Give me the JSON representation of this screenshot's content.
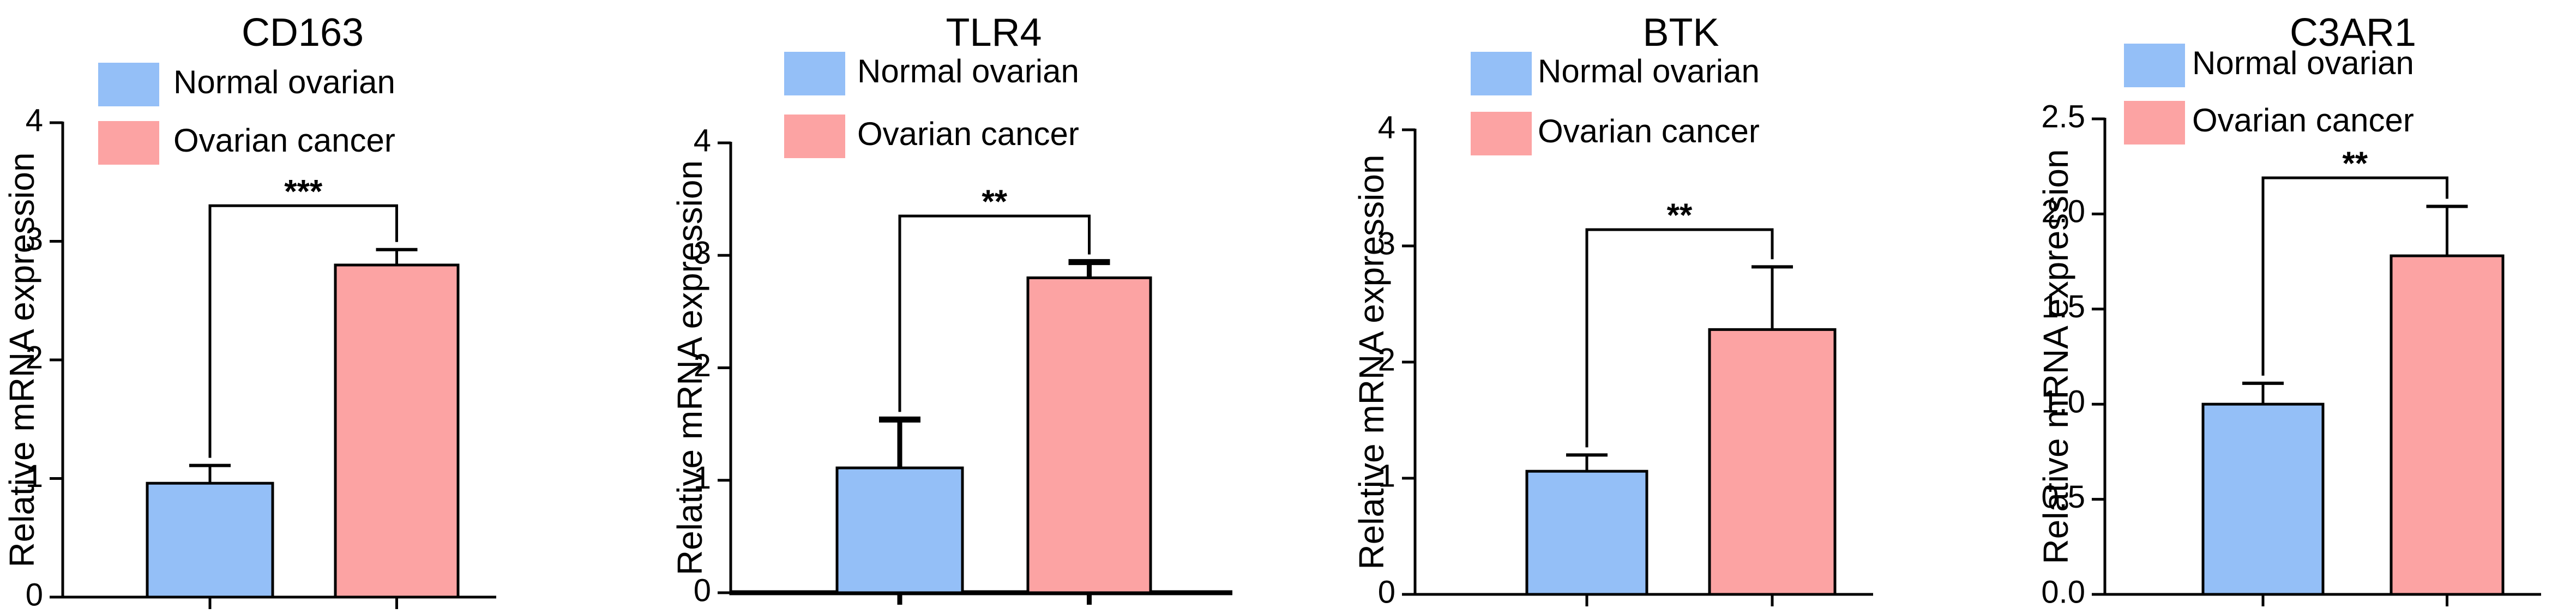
{
  "legend": {
    "normal_label": "Normal ovarian",
    "cancer_label": "Ovarian cancer"
  },
  "colors": {
    "normal": "#94BFF7",
    "cancer": "#FCA3A3",
    "axis": "#000000"
  },
  "chart_data": [
    {
      "type": "bar",
      "title": "CD163",
      "xlabel": "",
      "ylabel": "Relative mRNA expression",
      "categories": [
        "Normal ovarian",
        "Ovarian cancer"
      ],
      "values": [
        0.96,
        2.8
      ],
      "errors": [
        0.15,
        0.13
      ],
      "ylim": [
        0,
        4
      ],
      "yticks": [
        0,
        1,
        2,
        3,
        4
      ],
      "ytick_labels": [
        "0",
        "1",
        "2",
        "3",
        "4"
      ],
      "significance": "***",
      "sig_level": 3.3
    },
    {
      "type": "bar",
      "title": "TLR4",
      "xlabel": "",
      "ylabel": "Relative mRNA expression",
      "categories": [
        "Normal ovarian",
        "Ovarian cancer"
      ],
      "values": [
        1.11,
        2.8
      ],
      "errors": [
        0.43,
        0.14
      ],
      "ylim": [
        0,
        4
      ],
      "yticks": [
        0,
        1,
        2,
        3,
        4
      ],
      "ytick_labels": [
        "0",
        "1",
        "2",
        "3",
        "4"
      ],
      "significance": "**",
      "sig_level": 3.35
    },
    {
      "type": "bar",
      "title": "BTK",
      "xlabel": "",
      "ylabel": "Relative mRNA expression",
      "categories": [
        "Normal ovarian",
        "Ovarian cancer"
      ],
      "values": [
        1.06,
        2.28
      ],
      "errors": [
        0.14,
        0.54
      ],
      "ylim": [
        0,
        4
      ],
      "yticks": [
        0,
        1,
        2,
        3,
        4
      ],
      "ytick_labels": [
        "0",
        "1",
        "2",
        "3",
        "4"
      ],
      "significance": "**",
      "sig_level": 3.14
    },
    {
      "type": "bar",
      "title": "C3AR1",
      "xlabel": "",
      "ylabel": "Relative mRNA expression",
      "categories": [
        "Normal ovarian",
        "Ovarian cancer"
      ],
      "values": [
        1.0,
        1.78
      ],
      "errors": [
        0.11,
        0.26
      ],
      "ylim": [
        0,
        2.5
      ],
      "yticks": [
        0,
        0.5,
        1.0,
        1.5,
        2.0,
        2.5
      ],
      "ytick_labels": [
        "0.0",
        "0.5",
        "1.0",
        "1.5",
        "2.0",
        "2.5"
      ],
      "significance": "**",
      "sig_level": 2.19
    }
  ]
}
